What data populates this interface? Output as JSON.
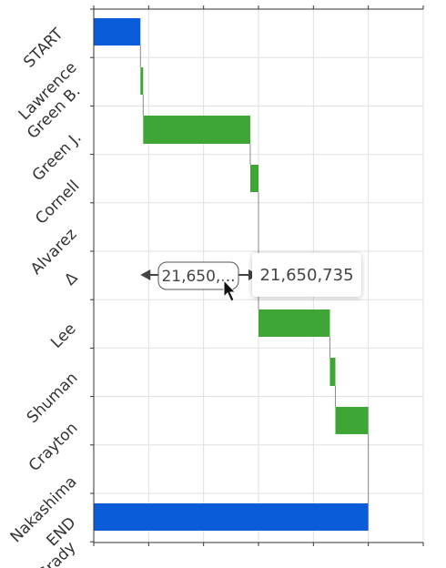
{
  "chart_data": {
    "type": "waterfall",
    "orientation": "horizontal",
    "categories": [
      "START",
      "Lawrence",
      "Green B.",
      "Green J.",
      "Cornell",
      "Alvarez",
      "Δ",
      "Lee",
      "Shuman",
      "Crayton",
      "Nakashima",
      "END",
      "Grady"
    ],
    "bars": [
      {
        "label": "START",
        "start": 0,
        "end": 17,
        "kind": "total"
      },
      {
        "label": "Green B.",
        "start": 17,
        "end": 18,
        "kind": "increase"
      },
      {
        "label": "Green J.",
        "start": 18,
        "end": 57,
        "kind": "increase"
      },
      {
        "label": "Cornell",
        "start": 57,
        "end": 60,
        "kind": "increase"
      },
      {
        "label": "Lee",
        "start": 60,
        "end": 86,
        "kind": "increase"
      },
      {
        "label": "Shuman",
        "start": 86,
        "end": 88,
        "kind": "increase"
      },
      {
        "label": "Crayton",
        "start": 88,
        "end": 100,
        "kind": "increase"
      },
      {
        "label": "END",
        "start": 0,
        "end": 100,
        "kind": "total"
      }
    ],
    "delta": {
      "from": 17,
      "to": 60,
      "label": "21,650,..."
    },
    "xlim": [
      0,
      120
    ],
    "grid": true,
    "colors": {
      "total": "#0b5cd8",
      "increase": "#3fa535",
      "connector": "#888888",
      "grid": "#e0e0e0",
      "axis": "#333333"
    }
  },
  "tooltip": {
    "value": "21,650,735"
  },
  "cursor": {
    "icon": "arrow-cursor-icon"
  }
}
